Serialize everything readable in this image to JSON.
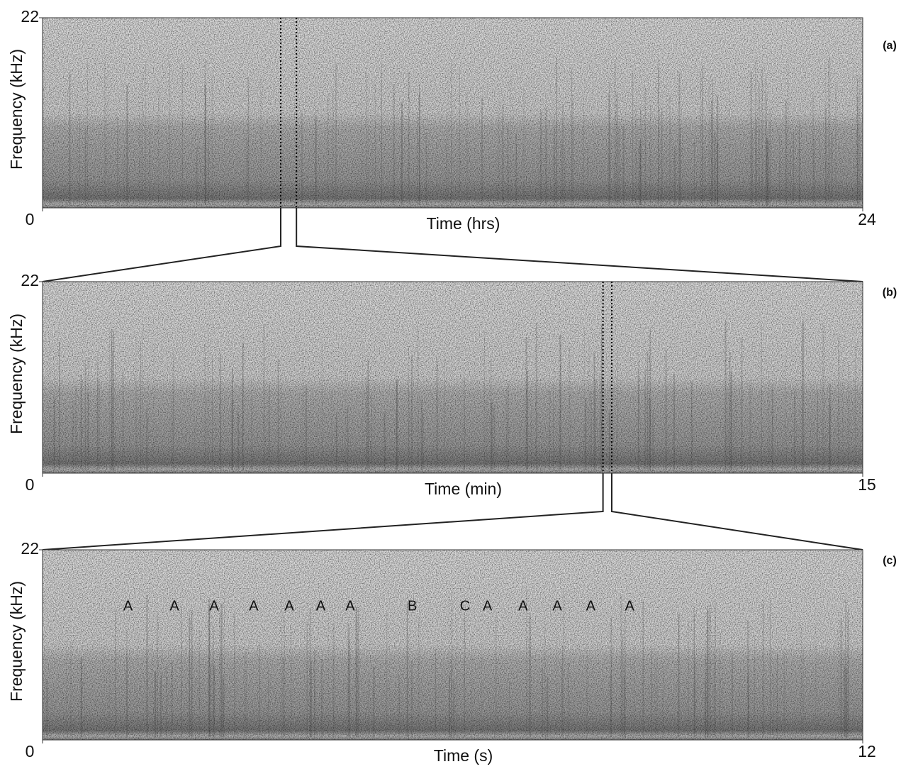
{
  "chart_data": [
    {
      "type": "spectrogram",
      "panel_label": "(a)",
      "xlabel": "Time (hrs)",
      "ylabel": "Frequency (kHz)",
      "xlim": [
        0,
        24
      ],
      "xticks": [
        0,
        24
      ],
      "ylim": [
        0,
        22
      ],
      "yticks": [
        22
      ],
      "highlight": [
        6.97,
        7.43
      ]
    },
    {
      "type": "spectrogram",
      "panel_label": "(b)",
      "xlabel": "Time (min)",
      "ylabel": "Frequency (kHz)",
      "xlim": [
        0,
        15
      ],
      "xticks": [
        0,
        15
      ],
      "ylim": [
        0,
        22
      ],
      "yticks": [
        22
      ],
      "highlight": [
        10.25,
        10.41
      ]
    },
    {
      "type": "spectrogram",
      "panel_label": "(c)",
      "xlabel": "Time (s)",
      "ylabel": "Frequency (kHz)",
      "xlim": [
        0,
        12
      ],
      "xticks": [
        0,
        12
      ],
      "ylim": [
        0,
        22
      ],
      "yticks": [
        22
      ],
      "annotations": [
        {
          "text": "A",
          "x": 1.25
        },
        {
          "text": "A",
          "x": 1.93
        },
        {
          "text": "A",
          "x": 2.51
        },
        {
          "text": "A",
          "x": 3.09
        },
        {
          "text": "A",
          "x": 3.61
        },
        {
          "text": "A",
          "x": 4.07
        },
        {
          "text": "A",
          "x": 4.5
        },
        {
          "text": "B",
          "x": 5.41
        },
        {
          "text": "C",
          "x": 6.18
        },
        {
          "text": "A",
          "x": 6.51
        },
        {
          "text": "A",
          "x": 7.03
        },
        {
          "text": "A",
          "x": 7.53
        },
        {
          "text": "A",
          "x": 8.02
        },
        {
          "text": "A",
          "x": 8.59
        }
      ]
    }
  ]
}
